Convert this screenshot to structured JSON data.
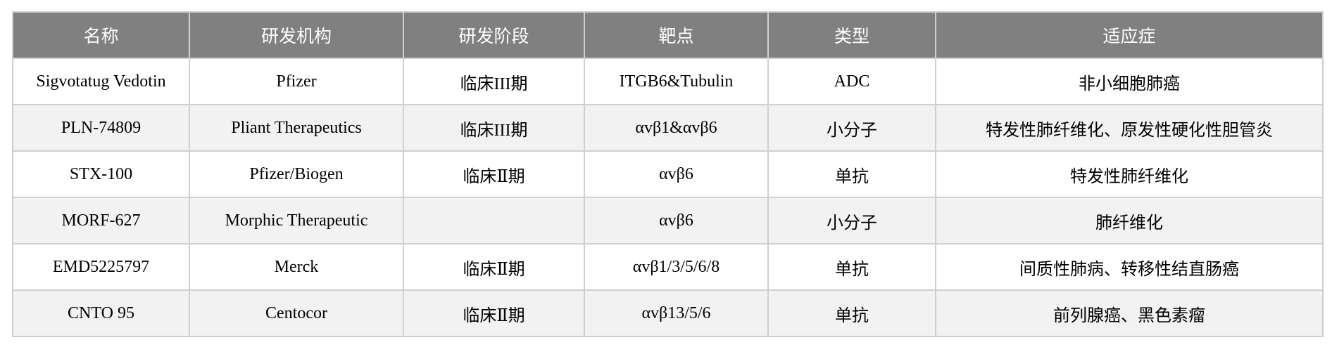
{
  "table": {
    "headers": [
      "名称",
      "研发机构",
      "研发阶段",
      "靶点",
      "类型",
      "适应症"
    ],
    "rows": [
      [
        "Sigvotatug Vedotin",
        "Pfizer",
        "临床III期",
        "ITGB6&Tubulin",
        "ADC",
        "非小细胞肺癌"
      ],
      [
        "PLN-74809",
        "Pliant Therapeutics",
        "临床III期",
        "αvβ1&αvβ6",
        "小分子",
        "特发性肺纤维化、原发性硬化性胆管炎"
      ],
      [
        "STX-100",
        "Pfizer/Biogen",
        "临床Ⅱ期",
        "αvβ6",
        "单抗",
        "特发性肺纤维化"
      ],
      [
        "MORF-627",
        "Morphic Therapeutic",
        "",
        "αvβ6",
        "小分子",
        "肺纤维化"
      ],
      [
        "EMD5225797",
        "Merck",
        "临床Ⅱ期",
        "αvβ1/3/5/6/8",
        "单抗",
        "间质性肺病、转移性结直肠癌"
      ],
      [
        "CNTO 95",
        "Centocor",
        "临床Ⅱ期",
        "αvβ13/5/6",
        "单抗",
        "前列腺癌、黑色素瘤"
      ]
    ]
  }
}
